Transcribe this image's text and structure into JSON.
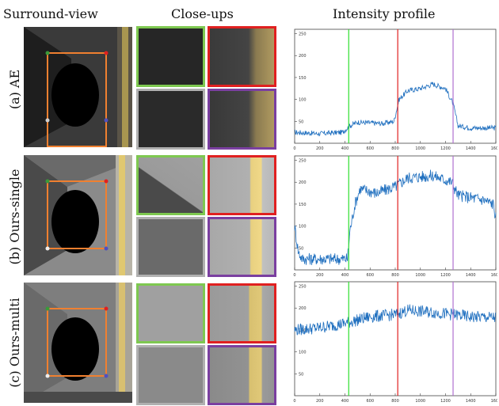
{
  "headers": {
    "surround": "Surround-view",
    "closeups": "Close-ups",
    "profile": "Intensity profile"
  },
  "rows": [
    {
      "id": "a",
      "label": "(a) AE",
      "exposure": "dark"
    },
    {
      "id": "b",
      "label": "(b) Ours-single",
      "exposure": "bright-left"
    },
    {
      "id": "c",
      "label": "(c) Ours-multi",
      "exposure": "balanced"
    }
  ],
  "closeup_colors": {
    "top_left": "#7ec850",
    "top_right": "#e02020",
    "bottom_left": "#b0b0b0",
    "bottom_right": "#7a3fa0"
  },
  "surround_marker_colors": {
    "top_left": "#3a9a3a",
    "top_right": "#e02020",
    "bottom_left": "#cfcfcf",
    "bottom_right": "#5050c0",
    "box": "#f08030"
  },
  "chart_data": [
    {
      "type": "line",
      "panel": "a",
      "xlim": [
        0,
        1600
      ],
      "ylim": [
        0,
        260
      ],
      "xticks": [
        "0",
        "200",
        "400",
        "600",
        "800",
        "1000",
        "1200",
        "1400",
        "1600"
      ],
      "yticks": [
        "50",
        "100",
        "150",
        "200",
        "250"
      ],
      "vlines": [
        {
          "x": 430,
          "color": "#2ee02e"
        },
        {
          "x": 820,
          "color": "#e02020"
        },
        {
          "x": 1260,
          "color": "#b070d0"
        }
      ],
      "profile": [
        [
          0,
          25
        ],
        [
          200,
          22
        ],
        [
          380,
          25
        ],
        [
          440,
          40
        ],
        [
          500,
          48
        ],
        [
          700,
          45
        ],
        [
          790,
          50
        ],
        [
          830,
          100
        ],
        [
          900,
          120
        ],
        [
          1000,
          125
        ],
        [
          1100,
          135
        ],
        [
          1200,
          125
        ],
        [
          1260,
          90
        ],
        [
          1300,
          40
        ],
        [
          1400,
          35
        ],
        [
          1600,
          35
        ]
      ]
    },
    {
      "type": "line",
      "panel": "b",
      "xlim": [
        0,
        1600
      ],
      "ylim": [
        0,
        260
      ],
      "xticks": [
        "0",
        "200",
        "400",
        "600",
        "800",
        "1000",
        "1200",
        "1400",
        "1600"
      ],
      "yticks": [
        "50",
        "100",
        "150",
        "200",
        "250"
      ],
      "vlines": [
        {
          "x": 430,
          "color": "#2ee02e"
        },
        {
          "x": 820,
          "color": "#e02020"
        },
        {
          "x": 1260,
          "color": "#b070d0"
        }
      ],
      "profile": [
        [
          0,
          100
        ],
        [
          30,
          40
        ],
        [
          60,
          25
        ],
        [
          200,
          25
        ],
        [
          420,
          25
        ],
        [
          440,
          90
        ],
        [
          480,
          150
        ],
        [
          520,
          185
        ],
        [
          650,
          175
        ],
        [
          800,
          190
        ],
        [
          900,
          210
        ],
        [
          1100,
          215
        ],
        [
          1250,
          200
        ],
        [
          1300,
          170
        ],
        [
          1500,
          160
        ],
        [
          1580,
          150
        ],
        [
          1600,
          120
        ]
      ]
    },
    {
      "type": "line",
      "panel": "c",
      "xlim": [
        0,
        1600
      ],
      "ylim": [
        0,
        260
      ],
      "xticks": [
        "0",
        "200",
        "400",
        "600",
        "800",
        "1000",
        "1200",
        "1400",
        "1600"
      ],
      "yticks": [
        "50",
        "100",
        "150",
        "200",
        "250"
      ],
      "vlines": [
        {
          "x": 430,
          "color": "#2ee02e"
        },
        {
          "x": 820,
          "color": "#e02020"
        },
        {
          "x": 1260,
          "color": "#b070d0"
        }
      ],
      "profile": [
        [
          0,
          150
        ],
        [
          200,
          155
        ],
        [
          400,
          165
        ],
        [
          600,
          180
        ],
        [
          800,
          185
        ],
        [
          900,
          195
        ],
        [
          1100,
          190
        ],
        [
          1260,
          185
        ],
        [
          1400,
          180
        ],
        [
          1600,
          178
        ]
      ]
    }
  ]
}
